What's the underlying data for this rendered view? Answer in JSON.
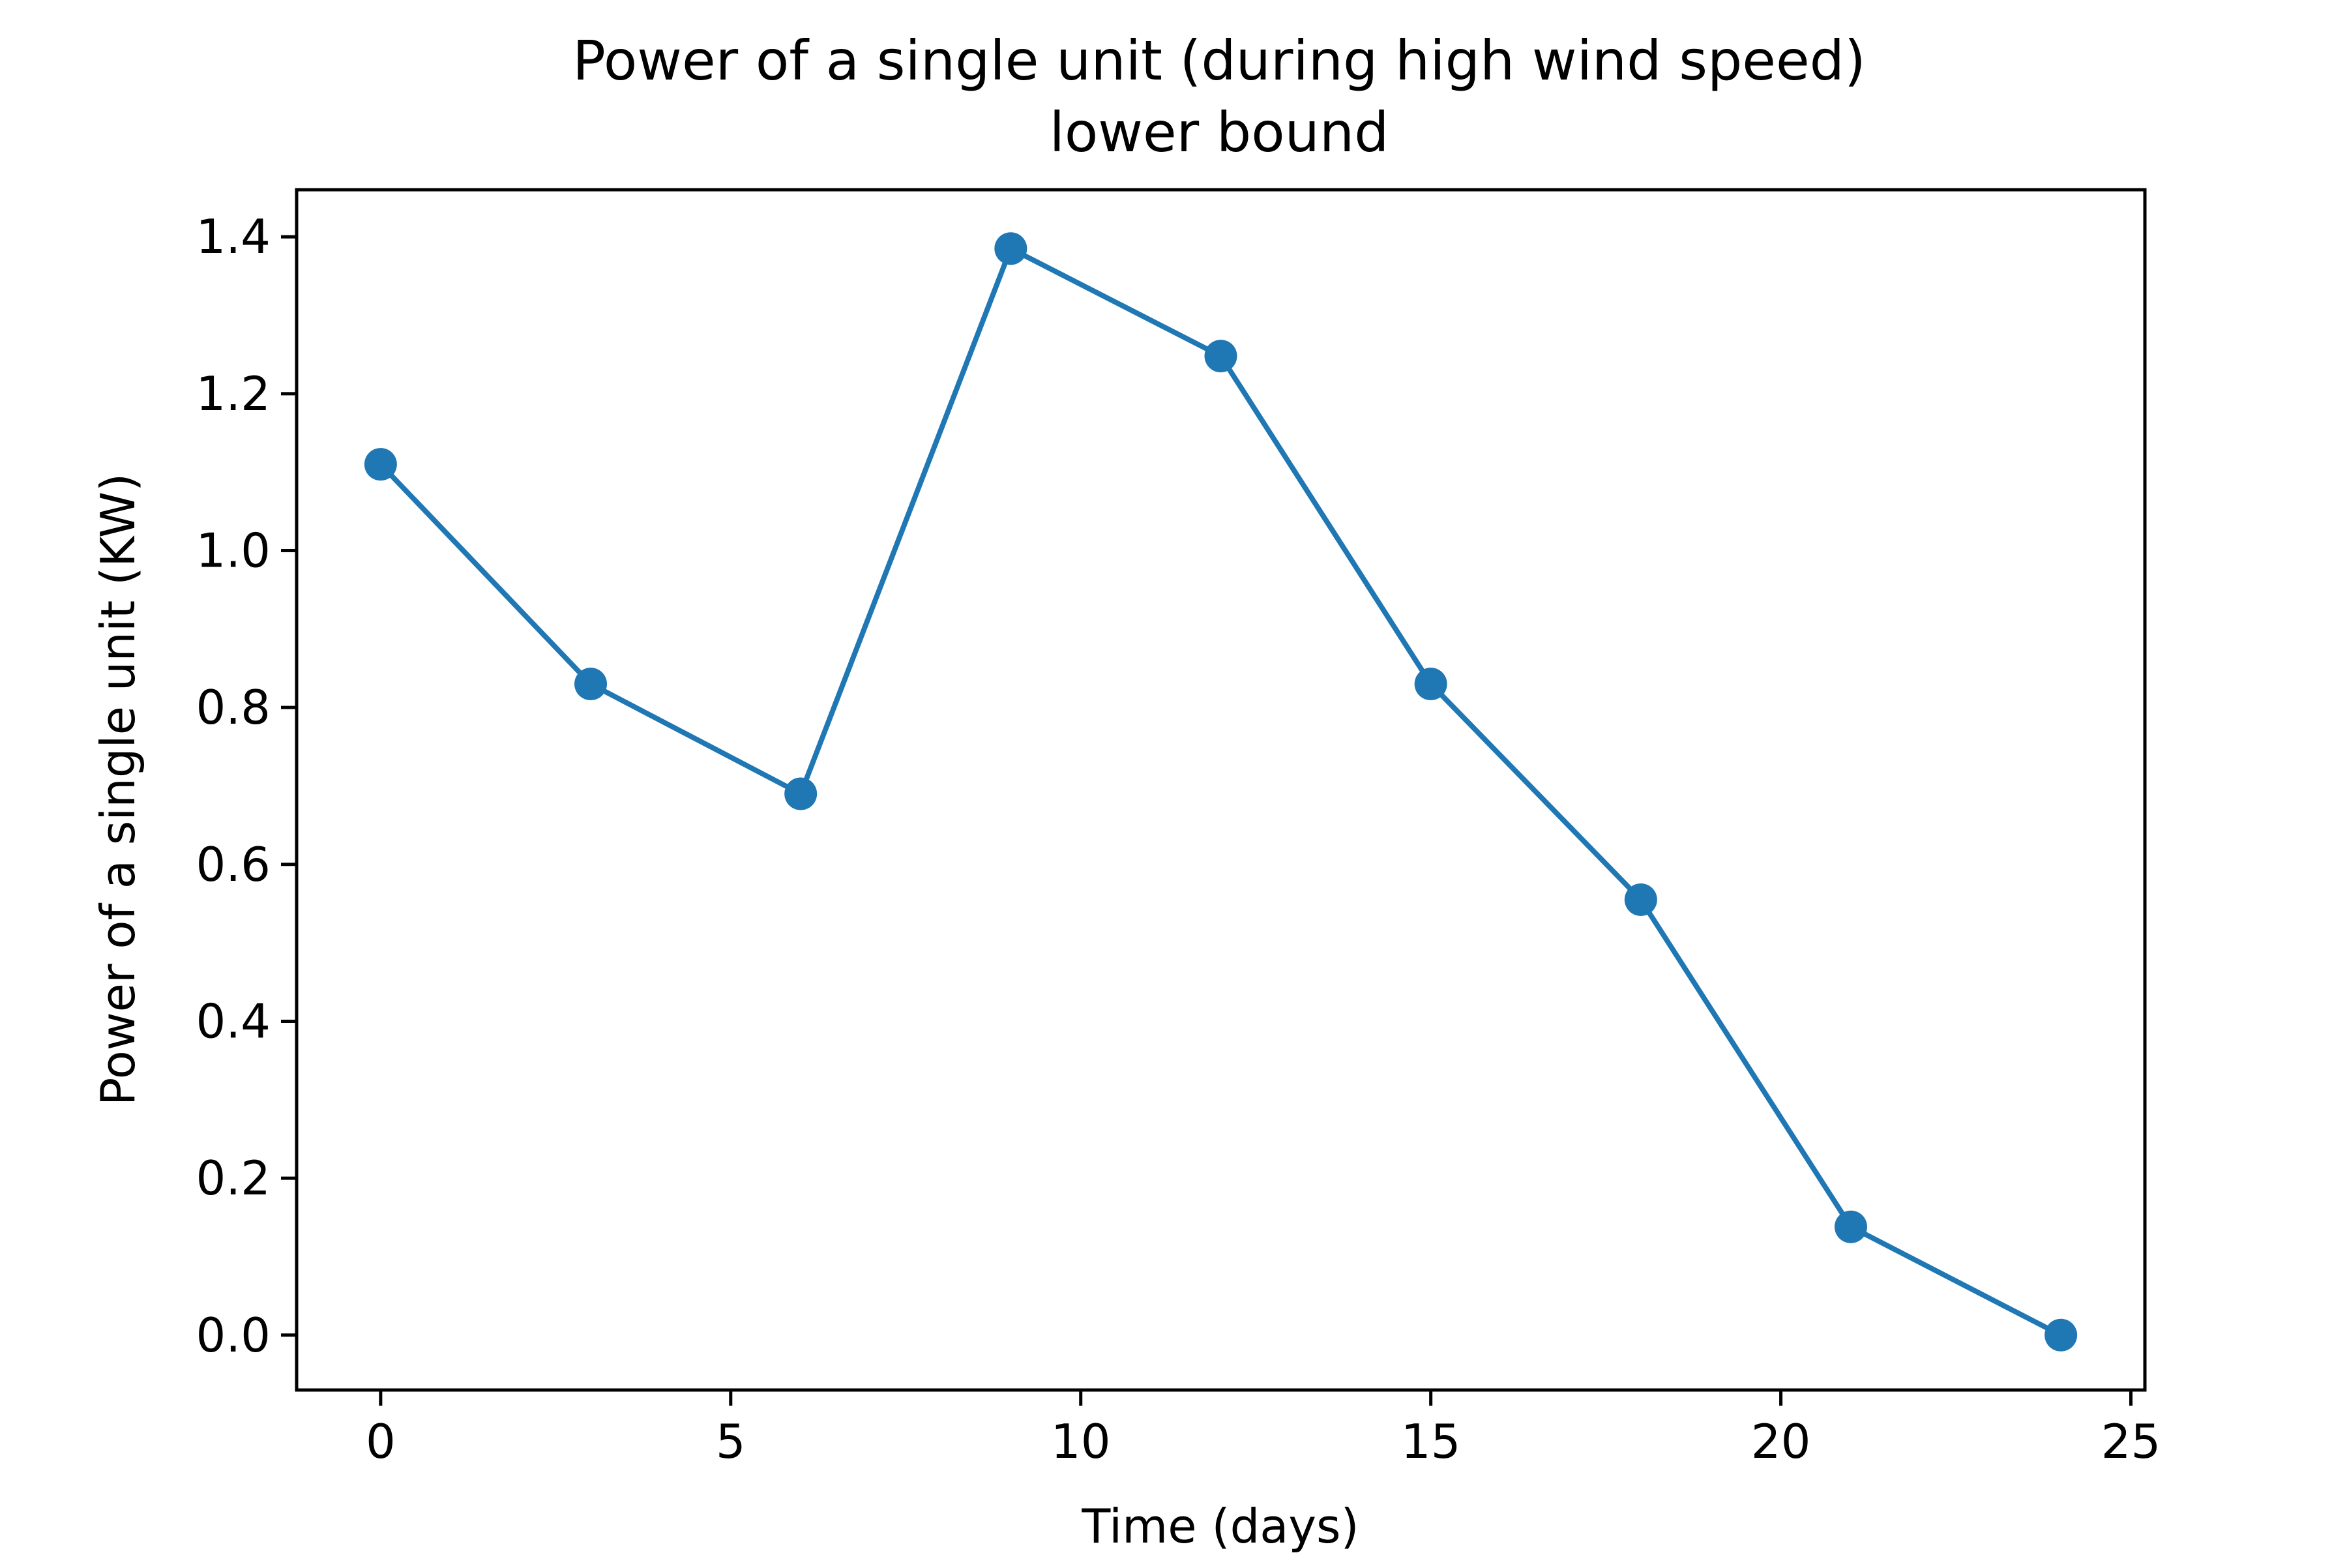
{
  "chart_data": {
    "type": "line",
    "title": "Power of a single unit (during high wind speed)",
    "subtitle": "lower bound",
    "xlabel": "Time (days)",
    "ylabel": "Power of a single unit (KW)",
    "xlim": [
      -1.2,
      25.2
    ],
    "ylim": [
      -0.07,
      1.46
    ],
    "xticks": [
      0,
      5,
      10,
      15,
      20,
      25
    ],
    "xtick_labels": [
      "0",
      "5",
      "10",
      "15",
      "20",
      "25"
    ],
    "yticks": [
      0.0,
      0.2,
      0.4,
      0.6,
      0.8,
      1.0,
      1.2,
      1.4
    ],
    "ytick_labels": [
      "0.0",
      "0.2",
      "0.4",
      "0.6",
      "0.8",
      "1.0",
      "1.2",
      "1.4"
    ],
    "grid": false,
    "legend": false,
    "series": [
      {
        "color": "#1f77b4",
        "marker": "circle",
        "x": [
          0,
          3,
          6,
          9,
          12,
          15,
          18,
          21,
          24
        ],
        "y": [
          1.11,
          0.83,
          0.69,
          1.385,
          1.248,
          0.83,
          0.555,
          0.138,
          0.0
        ]
      }
    ]
  }
}
